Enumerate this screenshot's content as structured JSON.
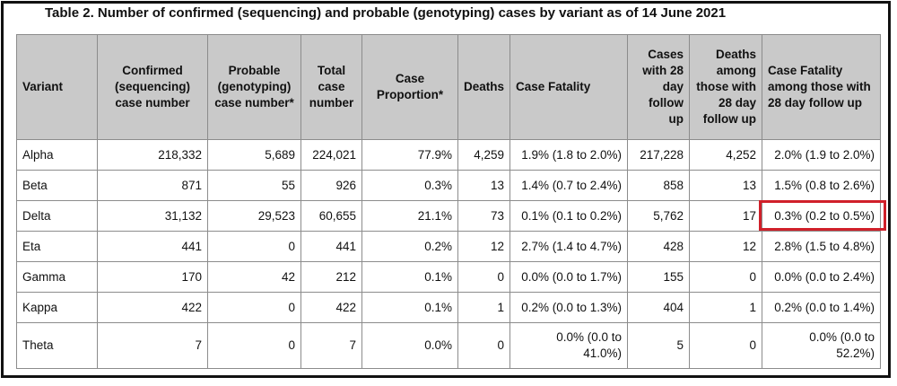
{
  "title": "Table 2. Number of confirmed (sequencing) and probable (genotyping) cases by variant as of 14 June 2021",
  "headers": [
    "Variant",
    "Confirmed (sequencing) case number",
    "Probable (genotyping) case number*",
    "Total case number",
    "Case Proportion*",
    "Deaths",
    "Case Fatality",
    "Cases with 28 day follow up",
    "Deaths among those with 28 day follow up",
    "Case Fatality among those with 28 day follow up"
  ],
  "rows": [
    [
      "Alpha",
      "218,332",
      "5,689",
      "224,021",
      "77.9%",
      "4,259",
      "1.9% (1.8 to 2.0%)",
      "217,228",
      "4,252",
      "2.0% (1.9 to 2.0%)"
    ],
    [
      "Beta",
      "871",
      "55",
      "926",
      "0.3%",
      "13",
      "1.4% (0.7 to 2.4%)",
      "858",
      "13",
      "1.5% (0.8 to 2.6%)"
    ],
    [
      "Delta",
      "31,132",
      "29,523",
      "60,655",
      "21.1%",
      "73",
      "0.1% (0.1 to 0.2%)",
      "5,762",
      "17",
      "0.3% (0.2 to 0.5%)"
    ],
    [
      "Eta",
      "441",
      "0",
      "441",
      "0.2%",
      "12",
      "2.7% (1.4 to 4.7%)",
      "428",
      "12",
      "2.8% (1.5 to 4.8%)"
    ],
    [
      "Gamma",
      "170",
      "42",
      "212",
      "0.1%",
      "0",
      "0.0% (0.0 to 1.7%)",
      "155",
      "0",
      "0.0% (0.0 to 2.4%)"
    ],
    [
      "Kappa",
      "422",
      "0",
      "422",
      "0.1%",
      "1",
      "0.2% (0.0 to 1.3%)",
      "404",
      "1",
      "0.2% (0.0 to 1.4%)"
    ],
    [
      "Theta",
      "7",
      "0",
      "7",
      "0.0%",
      "0",
      "0.0% (0.0 to 41.0%)",
      "5",
      "0",
      "0.0% (0.0 to 52.2%)"
    ]
  ],
  "highlight_color": "#d0202a"
}
